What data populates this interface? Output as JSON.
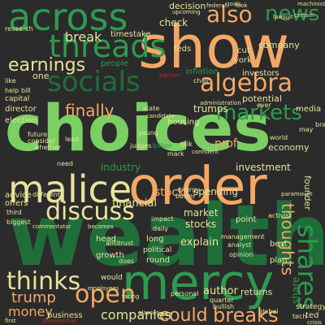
{
  "palette": {
    "background": "#2b2b2b",
    "dark_green": "#1f6e3a",
    "mid_green": "#2e9a4e",
    "light_green": "#7bcf63",
    "peach": "#f4a866",
    "cream": "#e7e39a",
    "red": "#b0302a"
  },
  "words": {
    "wealth": "wealth",
    "choices": "choices",
    "show": "show",
    "order": "order",
    "mercy": "mercy",
    "malice": "malice",
    "across": "across",
    "threads": "threads",
    "socials": "socials",
    "algebra": "algebra",
    "discuss": "discuss",
    "thinks": "thinks",
    "open": "open",
    "markets": "markets",
    "shares": "shares",
    "also": "also",
    "news": "news",
    "earnings": "earnings",
    "breaks": "breaks",
    "thoughts": "thoughts",
    "finally": "finally",
    "break": "break",
    "companies": "companies",
    "could": "could",
    "money": "money",
    "trump": "trump",
    "stock": "stock",
    "spending": "spending",
    "investment": "investment",
    "industry": "industry",
    "financial": "financial",
    "market": "market",
    "stocks": "stocks",
    "explain": "explain",
    "author": "author",
    "returns": "returns",
    "prof": "prof",
    "potential": "potential",
    "economy": "economy",
    "trumps": "trumps",
    "company": "company",
    "decision": "decision",
    "check": "check",
    "people": "people",
    "times": "times",
    "take": "take",
    "director": "director",
    "election": "election",
    "advice": "advice",
    "offers": "offers",
    "business": "business",
    "share": "share",
    "strategy": "strategy",
    "founder": "founder",
    "media": "media",
    "investors": "investors",
    "housing": "housing",
    "york": "york",
    "cut": "cut",
    "feds": "feds",
    "inflation": "inflation",
    "plan": "plan",
    "point": "point",
    "head": "head",
    "growth": "growth",
    "round": "round",
    "long": "long",
    "best": "best",
    "political": "political",
    "billion": "billion",
    "research": "research",
    "capital": "capital",
    "chair": "chair",
    "future": "future",
    "consider": "consider",
    "whether": "whether",
    "different": "different",
    "third": "third",
    "biggest": "biggest",
    "would": "would",
    "world": "world",
    "global": "global",
    "quarter": "quarter",
    "bullish": "bullish",
    "personal": "personal",
    "analyst": "analyst",
    "management": "management",
    "opinion": "opinion",
    "energy": "energy",
    "better": "better",
    "state": "state",
    "young": "young",
    "administration": "administration",
    "ever": "ever",
    "brand": "brand",
    "may": "may",
    "help": "help",
    "bill": "bill",
    "like": "like",
    "upcoming": "upcoming",
    "federal": "federal",
    "look": "look",
    "goals": "goals",
    "machinist": "machinist",
    "certain": "certain",
    "lawsuit": "lawsuit",
    "partner": "partner",
    "candidate": "candidate",
    "judges": "judges",
    "talk": "talk",
    "mark": "mark",
    "confident": "confident",
    "daily": "daily",
    "impact": "impact",
    "need": "need",
    "lead": "lead",
    "paramount": "paramount",
    "ted": "ted",
    "crisis": "crisis",
    "tech": "tech",
    "activist": "activist",
    "employees": "employees",
    "antitrust": "antitrust",
    "does": "does",
    "case": "case",
    "glasses": "glasses",
    "presidential": "presidential",
    "commentator": "commentator",
    "becomes": "becomes",
    "facing": "facing",
    "one": "one",
    "first": "first"
  }
}
